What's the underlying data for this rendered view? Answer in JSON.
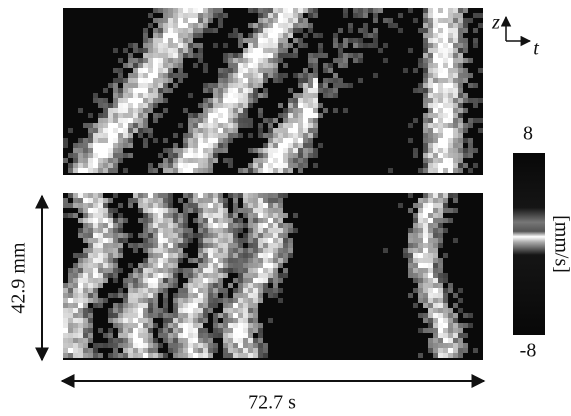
{
  "axes_icon": {
    "vertical": "z",
    "horizontal": "t"
  },
  "colorbar": {
    "max_label": "8",
    "min_label": "-8",
    "unit": "[mm/s]"
  },
  "scale": {
    "height": "42.9 mm",
    "width": "72.7 s"
  }
}
